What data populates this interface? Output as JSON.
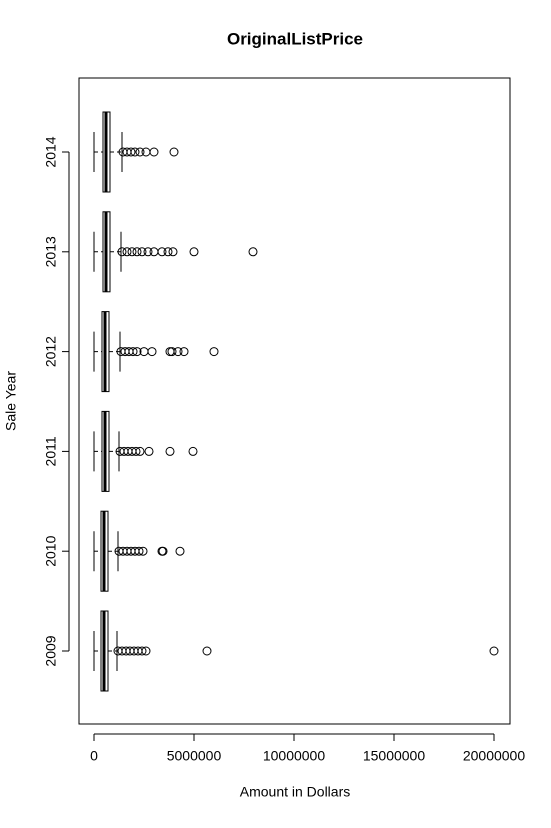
{
  "chart_data": {
    "type": "boxplot",
    "title": "OriginalListPrice",
    "x_label": "Amount in Dollars",
    "y_label": "Sale Year",
    "categories": [
      "2009",
      "2010",
      "2011",
      "2012",
      "2013",
      "2014"
    ],
    "boxes": [
      {
        "min": 0,
        "q1": 350000,
        "median": 500000,
        "q3": 700000,
        "max": 1150000,
        "outliers": [
          1200000,
          1400000,
          1600000,
          1800000,
          2000000,
          2200000,
          2400000,
          2600000,
          5650000,
          20000000
        ]
      },
      {
        "min": 0,
        "q1": 350000,
        "median": 500000,
        "q3": 700000,
        "max": 1200000,
        "outliers": [
          1250000,
          1450000,
          1650000,
          1850000,
          2050000,
          2250000,
          2450000,
          3400000,
          3450000,
          4300000
        ]
      },
      {
        "min": 0,
        "q1": 400000,
        "median": 550000,
        "q3": 750000,
        "max": 1250000,
        "outliers": [
          1300000,
          1500000,
          1700000,
          1900000,
          2100000,
          2300000,
          2750000,
          3800000,
          4950000
        ]
      },
      {
        "min": 0,
        "q1": 400000,
        "median": 550000,
        "q3": 750000,
        "max": 1300000,
        "outliers": [
          1350000,
          1550000,
          1750000,
          1950000,
          2150000,
          2500000,
          2900000,
          3800000,
          3900000,
          4200000,
          4500000,
          6000000
        ]
      },
      {
        "min": 0,
        "q1": 450000,
        "median": 600000,
        "q3": 800000,
        "max": 1350000,
        "outliers": [
          1400000,
          1650000,
          1900000,
          2150000,
          2400000,
          2700000,
          3000000,
          3400000,
          3700000,
          3950000,
          5000000,
          7950000
        ]
      },
      {
        "min": 0,
        "q1": 450000,
        "median": 600000,
        "q3": 800000,
        "max": 1400000,
        "outliers": [
          1450000,
          1650000,
          1850000,
          2050000,
          2300000,
          2600000,
          3000000,
          4000000
        ]
      }
    ],
    "xlim": [
      -750000,
      20800000
    ],
    "xticks": [
      0,
      5000000,
      10000000,
      15000000,
      20000000
    ]
  }
}
